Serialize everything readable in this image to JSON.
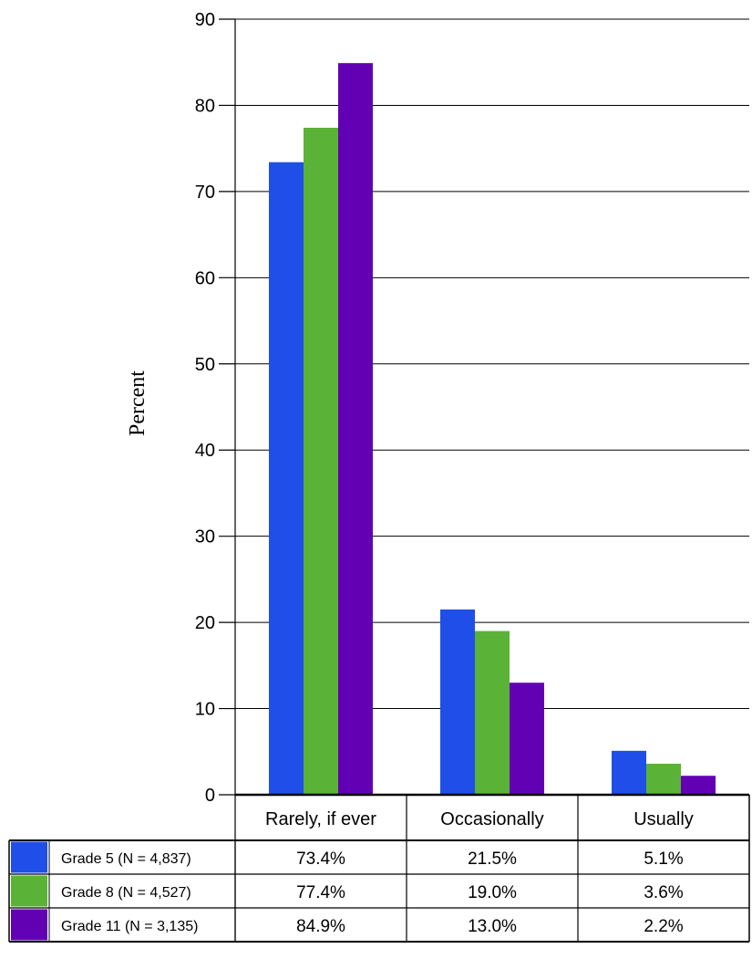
{
  "chart_data": {
    "type": "bar",
    "ylabel": "Percent",
    "ylim": [
      0,
      90
    ],
    "yticks": [
      0,
      10,
      20,
      30,
      40,
      50,
      60,
      70,
      80,
      90
    ],
    "grid": true,
    "categories": [
      "Rarely, if ever",
      "Occasionally",
      "Usually"
    ],
    "series": [
      {
        "name": "Grade 5 (N = 4,837)",
        "color": "#1f4fe8",
        "values": [
          73.4,
          21.5,
          5.1
        ],
        "labels": [
          "73.4%",
          "21.5%",
          "5.1%"
        ]
      },
      {
        "name": "Grade 8 (N = 4,527)",
        "color": "#5ab336",
        "values": [
          77.4,
          19.0,
          3.6
        ],
        "labels": [
          "77.4%",
          "19.0%",
          "3.6%"
        ]
      },
      {
        "name": "Grade 11 (N = 3,135)",
        "color": "#6200b3",
        "values": [
          84.9,
          13.0,
          2.2
        ],
        "labels": [
          "84.9%",
          "13.0%",
          "2.2%"
        ]
      }
    ],
    "legend": "data-table"
  }
}
